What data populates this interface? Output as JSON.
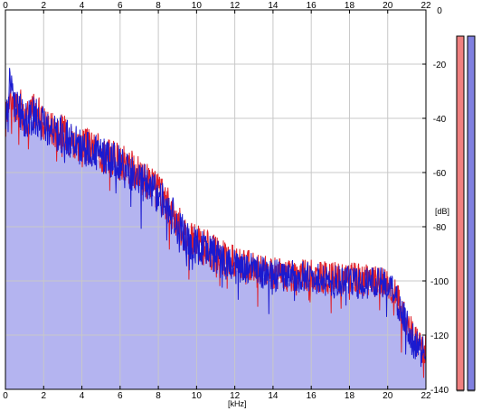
{
  "window": {
    "background": "#ffffff",
    "plot_background": "#ffffff",
    "grid_color": "#c8c8c8",
    "frame_color": "#000000"
  },
  "chart_data": {
    "type": "line",
    "title": "",
    "xlabel": "[kHz]",
    "ylabel": "[dB]",
    "xlim": [
      0,
      22
    ],
    "ylim": [
      -140,
      0
    ],
    "x_ticks": [
      0,
      2,
      4,
      6,
      8,
      10,
      12,
      14,
      16,
      18,
      20,
      22
    ],
    "y_ticks": [
      0,
      -20,
      -40,
      -60,
      -80,
      -100,
      -120,
      -140
    ],
    "x_tick_labels": [
      "0",
      "2",
      "4",
      "6",
      "8",
      "10",
      "12",
      "14",
      "16",
      "18",
      "20",
      "22"
    ],
    "y_tick_labels": [
      "0",
      "-20",
      "-40",
      "-60",
      "-80",
      "-100",
      "-120",
      "-140"
    ],
    "grid": true,
    "fill_color": "#b4b4f0",
    "series": [
      {
        "color": "#e0202a",
        "x": [
          0,
          0.2,
          0.4,
          0.6,
          0.8,
          1.0,
          1.5,
          2.0,
          2.5,
          3.0,
          3.5,
          4.0,
          4.5,
          5.0,
          5.5,
          6.0,
          6.5,
          7.0,
          7.5,
          8.0,
          8.5,
          9.0,
          9.5,
          10.0,
          10.5,
          11.0,
          11.5,
          12.0,
          13.0,
          14.0,
          15.0,
          16.0,
          17.0,
          18.0,
          19.0,
          20.0,
          20.5,
          21.0,
          21.5,
          22.0
        ],
        "values": [
          -42,
          -30,
          -34,
          -38,
          -36,
          -40,
          -37,
          -41,
          -44,
          -45,
          -48,
          -50,
          -51,
          -53,
          -54,
          -56,
          -58,
          -61,
          -64,
          -67,
          -72,
          -78,
          -84,
          -86,
          -88,
          -90,
          -92,
          -93,
          -95,
          -97,
          -98,
          -98,
          -99,
          -99,
          -100,
          -100,
          -106,
          -115,
          -122,
          -126
        ]
      },
      {
        "color": "#1a1ad0",
        "x": [
          0,
          0.2,
          0.4,
          0.6,
          0.8,
          1.0,
          1.5,
          2.0,
          2.5,
          3.0,
          3.5,
          4.0,
          4.5,
          5.0,
          5.5,
          6.0,
          6.5,
          7.0,
          7.5,
          8.0,
          8.5,
          9.0,
          9.5,
          10.0,
          10.5,
          11.0,
          11.5,
          12.0,
          13.0,
          14.0,
          15.0,
          16.0,
          17.0,
          18.0,
          19.0,
          20.0,
          20.5,
          21.0,
          21.5,
          22.0
        ],
        "values": [
          -45,
          -24,
          -33,
          -36,
          -38,
          -41,
          -39,
          -42,
          -45,
          -46,
          -49,
          -51,
          -52,
          -54,
          -55,
          -57,
          -60,
          -62,
          -65,
          -68,
          -73,
          -79,
          -85,
          -87,
          -89,
          -91,
          -93,
          -94,
          -96,
          -98,
          -98,
          -99,
          -100,
          -100,
          -101,
          -101,
          -108,
          -116,
          -124,
          -127
        ]
      }
    ]
  },
  "level_meters": [
    {
      "label": "",
      "color": "#f08080",
      "value_db": 0
    },
    {
      "label": "",
      "color": "#8080e0",
      "value_db": 0
    }
  ]
}
